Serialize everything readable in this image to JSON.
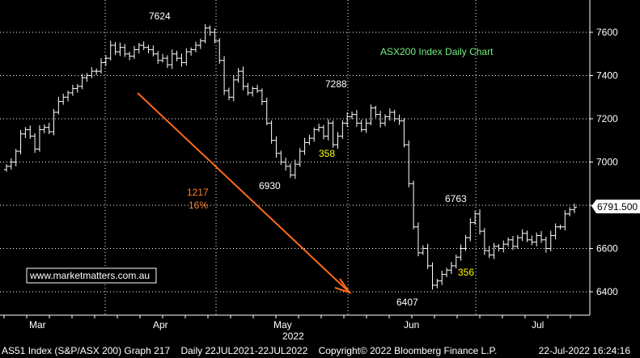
{
  "chart_data": {
    "type": "candlestick",
    "title": "ASX200 Index Daily Chart",
    "xlabel": "2022",
    "ylim": [
      6340,
      7750
    ],
    "yticks": [
      6400,
      6600,
      6800,
      7000,
      7200,
      7400,
      7600
    ],
    "xticks": [
      "Mar",
      "Apr",
      "May",
      "Jun",
      "Jul"
    ],
    "last_price": "6791.500",
    "series": [
      {
        "close": [
          6980,
          7000,
          7050,
          7130,
          7150,
          7120,
          7060,
          7150,
          7160,
          7140,
          7230,
          7280,
          7300,
          7320,
          7340,
          7350,
          7390,
          7400,
          7420,
          7420,
          7460,
          7480,
          7540,
          7510,
          7530,
          7500,
          7490,
          7520,
          7540,
          7530,
          7520,
          7500,
          7470,
          7480,
          7450,
          7500,
          7480,
          7460,
          7510,
          7520,
          7540,
          7560,
          7620,
          7600,
          7560,
          7470,
          7330,
          7300,
          7380,
          7420,
          7350,
          7320,
          7340,
          7330,
          7280,
          7180,
          7100,
          7040,
          7000,
          6980,
          6940,
          6990,
          7050,
          7090,
          7110,
          7150,
          7160,
          7120,
          7180,
          7080,
          7120,
          7180,
          7210,
          7220,
          7180,
          7150,
          7180,
          7250,
          7220,
          7180,
          7210,
          7230,
          7200,
          7190,
          7080,
          6900,
          6700,
          6580,
          6600,
          6520,
          6430,
          6450,
          6480,
          6500,
          6520,
          6560,
          6600,
          6650,
          6720,
          6760,
          6680,
          6590,
          6570,
          6610,
          6600,
          6620,
          6640,
          6610,
          6650,
          6670,
          6640,
          6630,
          6660,
          6640,
          6600,
          6660,
          6700,
          6700,
          6760,
          6780,
          6790
        ]
      }
    ],
    "annotations": [
      {
        "text": "7624",
        "color": "#ffffff"
      },
      {
        "text": "7288",
        "color": "#ffffff"
      },
      {
        "text": "6930",
        "color": "#ffffff"
      },
      {
        "text": "358",
        "color": "#ffff00"
      },
      {
        "text": "1217",
        "color": "#ff7f27"
      },
      {
        "text": "16%",
        "color": "#ff7f27"
      },
      {
        "text": "6763",
        "color": "#ffffff"
      },
      {
        "text": "6407",
        "color": "#ffffff"
      },
      {
        "text": "356",
        "color": "#ffff00"
      }
    ],
    "title_color": "#6cf07c",
    "trend_arrow_color": "#ff6a1a",
    "grid": true
  },
  "watermark": "www.marketmatters.com.au",
  "footer": {
    "security": "AS51 Index (S&P/ASX 200) Graph 217",
    "range": "Daily 22JUL2021-22JUL2022",
    "copyright": "Copyright© 2022 Bloomberg Finance L.P.",
    "timestamp": "22-Jul-2022 16:24:16"
  }
}
